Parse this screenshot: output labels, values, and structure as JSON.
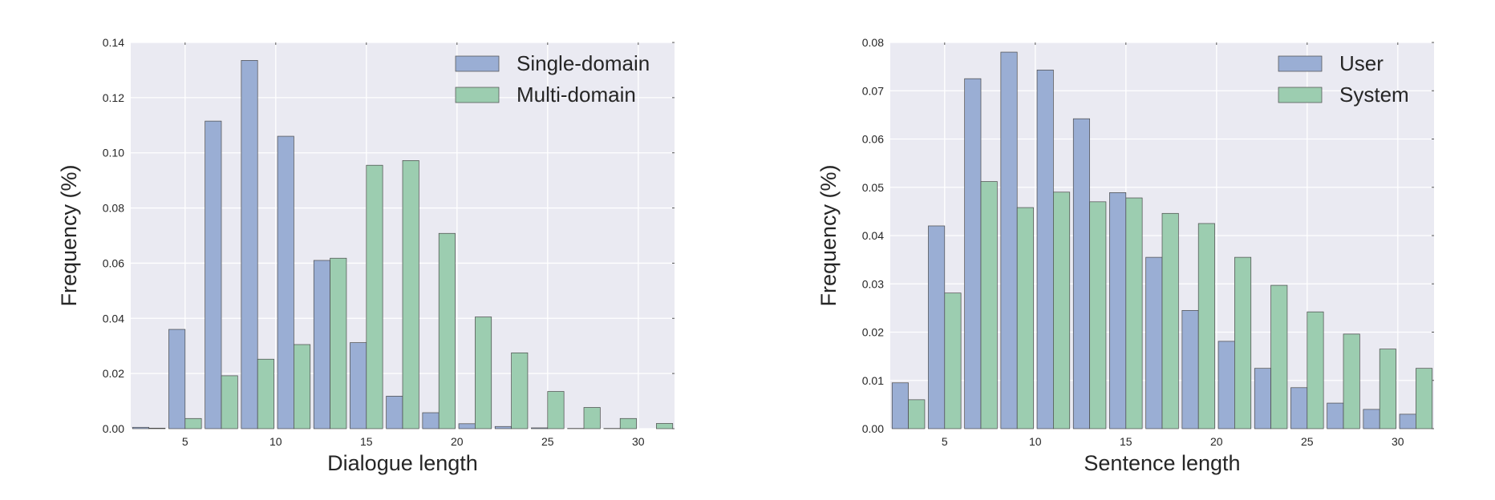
{
  "colors": {
    "plot_bg": "#eaeaf2",
    "grid": "#ffffff",
    "series_1": "#9aaed4",
    "series_2": "#9ccdb0",
    "bar_edge": "#4a4a4a"
  },
  "chart_data": [
    {
      "type": "bar",
      "xlabel": "Dialogue length",
      "ylabel": "Frequency (%)",
      "x": [
        3,
        5,
        7,
        9,
        11,
        13,
        15,
        17,
        19,
        21,
        23,
        25,
        27,
        29,
        31
      ],
      "xlim": [
        2,
        32
      ],
      "xticks": [
        5,
        10,
        15,
        20,
        25,
        30
      ],
      "ylim": [
        0,
        0.14
      ],
      "yticks": [
        "0.00",
        "0.02",
        "0.04",
        "0.06",
        "0.08",
        "0.10",
        "0.12",
        "0.14"
      ],
      "grid": true,
      "legend": "top-right",
      "series": [
        {
          "name": "Single-domain",
          "color": "#9aaed4",
          "values": [
            0.0005,
            0.036,
            0.1115,
            0.1335,
            0.106,
            0.061,
            0.0312,
            0.0118,
            0.0058,
            0.0018,
            0.0008,
            0.0003,
            0.0001,
            0.0001,
            0.0
          ]
        },
        {
          "name": "Multi-domain",
          "color": "#9ccdb0",
          "values": [
            0.0002,
            0.0037,
            0.0192,
            0.0252,
            0.0305,
            0.0618,
            0.0955,
            0.0972,
            0.0708,
            0.0405,
            0.0275,
            0.0135,
            0.0077,
            0.0037,
            0.0019
          ]
        }
      ]
    },
    {
      "type": "bar",
      "xlabel": "Sentence length",
      "ylabel": "Frequency (%)",
      "x": [
        3,
        5,
        7,
        9,
        11,
        13,
        15,
        17,
        19,
        21,
        23,
        25,
        27,
        29,
        31
      ],
      "xlim": [
        2,
        32
      ],
      "xticks": [
        5,
        10,
        15,
        20,
        25,
        30
      ],
      "ylim": [
        0,
        0.08
      ],
      "yticks": [
        "0.00",
        "0.01",
        "0.02",
        "0.03",
        "0.04",
        "0.05",
        "0.06",
        "0.07",
        "0.08"
      ],
      "grid": true,
      "legend": "top-right",
      "series": [
        {
          "name": "User",
          "color": "#9aaed4",
          "values": [
            0.0095,
            0.042,
            0.0725,
            0.078,
            0.0743,
            0.0642,
            0.0489,
            0.0355,
            0.0245,
            0.0181,
            0.0125,
            0.0085,
            0.0053,
            0.004,
            0.003
          ]
        },
        {
          "name": "System",
          "color": "#9ccdb0",
          "values": [
            0.006,
            0.0281,
            0.0512,
            0.0458,
            0.049,
            0.047,
            0.0478,
            0.0446,
            0.0425,
            0.0355,
            0.0297,
            0.0242,
            0.0196,
            0.0165,
            0.0125
          ]
        }
      ]
    }
  ]
}
